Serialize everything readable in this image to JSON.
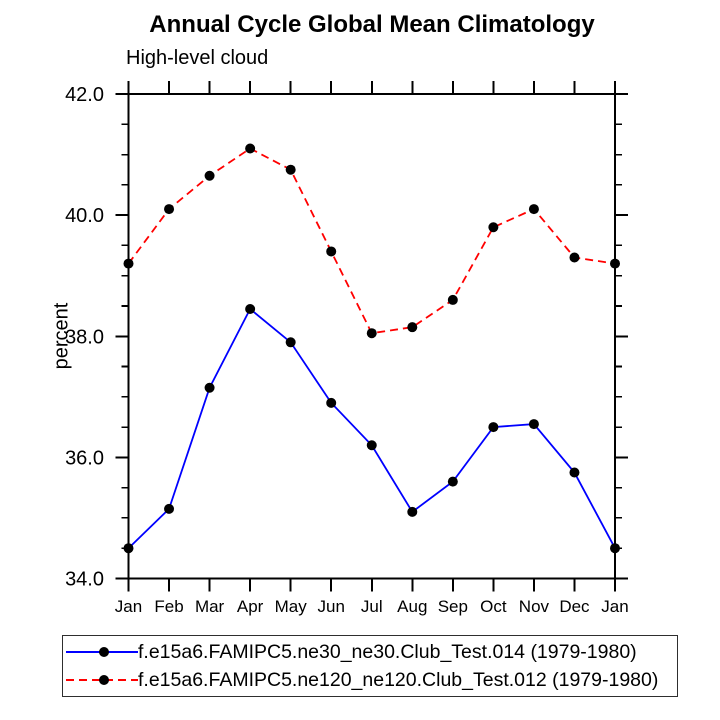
{
  "chart_data": {
    "type": "line",
    "title": "Annual Cycle Global Mean Climatology",
    "subtitle": "High-level cloud",
    "xlabel": "",
    "ylabel": "percent",
    "categories": [
      "Jan",
      "Feb",
      "Mar",
      "Apr",
      "May",
      "Jun",
      "Jul",
      "Aug",
      "Sep",
      "Oct",
      "Nov",
      "Dec",
      "Jan"
    ],
    "ylim": [
      34.0,
      42.0
    ],
    "y_major_tick_step": 2.0,
    "y_minor_tick_step": 0.5,
    "y_tick_labels": [
      "34.0",
      "36.0",
      "38.0",
      "40.0",
      "42.0"
    ],
    "grid": false,
    "legend_position": "bottom-left",
    "marker": {
      "shape": "circle",
      "color": "#000000"
    },
    "axis_color": "#000000",
    "series": [
      {
        "name": "f.e15a6.FAMIPC5.ne30_ne30.Club_Test.014 (1979-1980)",
        "color": "#0000ff",
        "line_style": "solid",
        "values": [
          34.5,
          35.15,
          37.15,
          38.45,
          37.9,
          36.9,
          36.2,
          35.1,
          35.6,
          36.5,
          36.55,
          35.75,
          34.5
        ]
      },
      {
        "name": "f.e15a6.FAMIPC5.ne120_ne120.Club_Test.012 (1979-1980)",
        "color": "#ff0000",
        "line_style": "dashed",
        "values": [
          39.2,
          40.1,
          40.65,
          41.1,
          40.75,
          39.4,
          38.05,
          38.15,
          38.6,
          39.8,
          40.1,
          39.3,
          39.2
        ]
      }
    ]
  }
}
